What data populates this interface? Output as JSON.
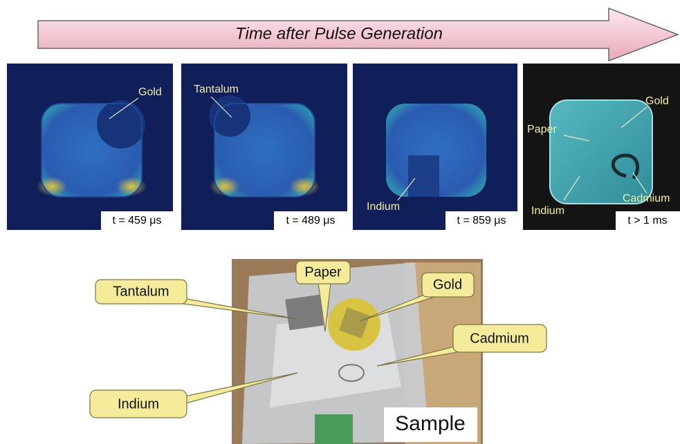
{
  "arrow_title": "Time after Pulse Generation",
  "panels": [
    {
      "time": "t = 459 μs",
      "labels": [
        "Gold"
      ]
    },
    {
      "time": "t = 489 μs",
      "labels": [
        "Tantalum"
      ]
    },
    {
      "time": "t = 859 μs",
      "labels": [
        "Indium"
      ]
    },
    {
      "time": "t > 1 ms",
      "labels": [
        "Paper",
        "Gold",
        "Cadmium",
        "Indium"
      ]
    }
  ],
  "sample": {
    "label": "Sample",
    "callouts": [
      "Tantalum",
      "Paper",
      "Gold",
      "Cadmium",
      "Indium"
    ]
  }
}
